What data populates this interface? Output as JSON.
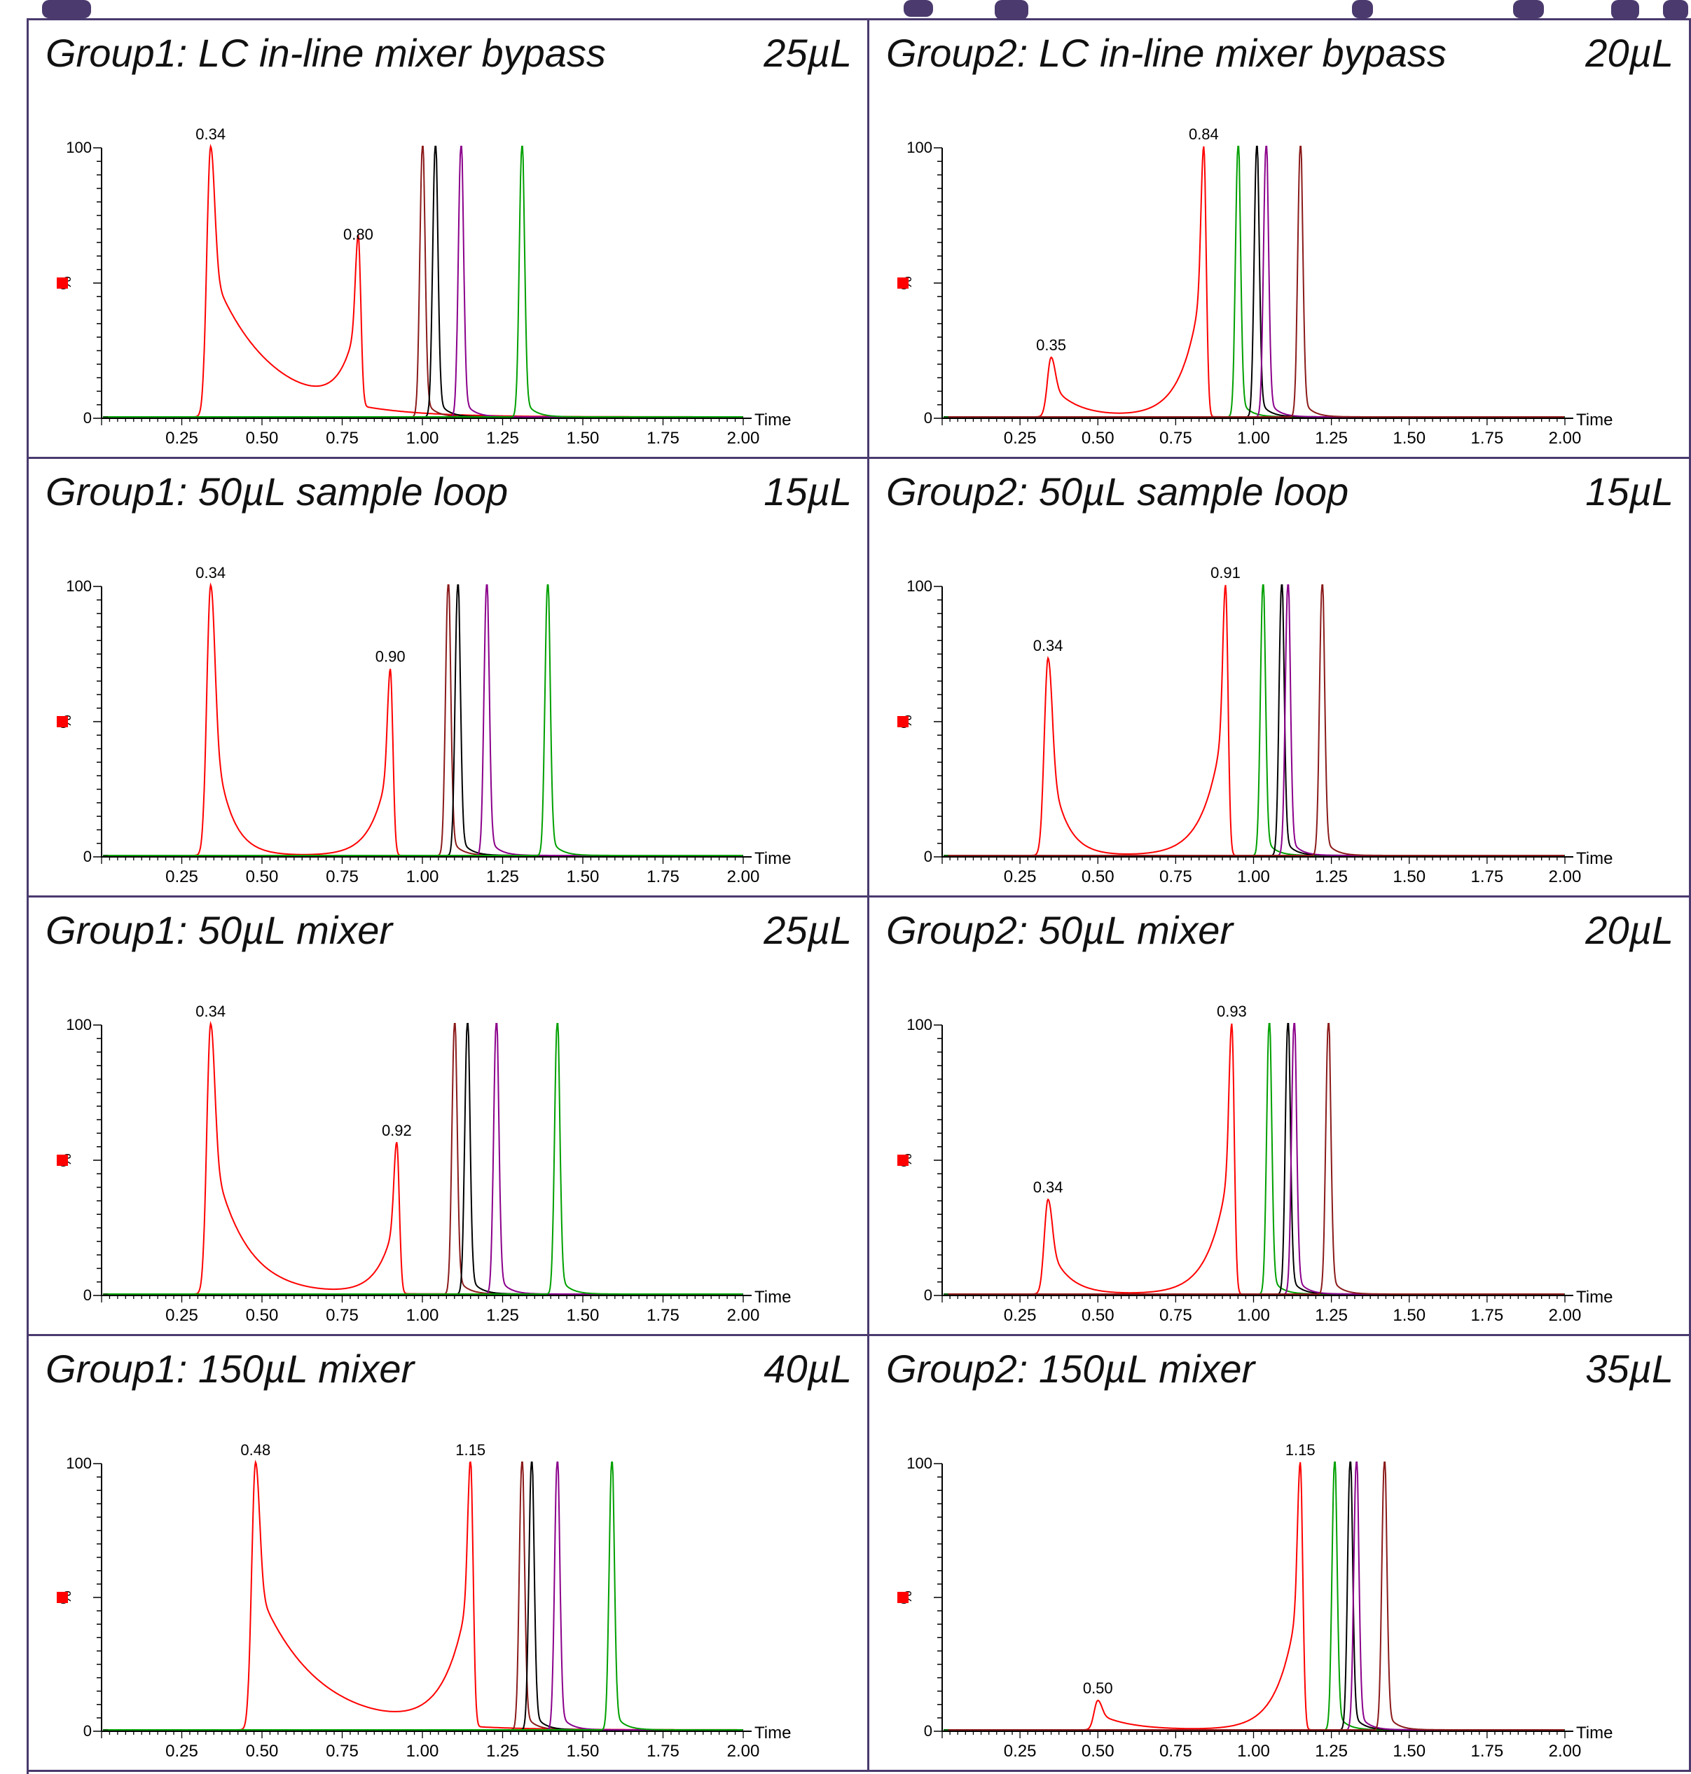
{
  "header_fragment": {
    "text_color": "#4a3a6e"
  },
  "colors": {
    "frame": "#4a3a6e",
    "axis": "#000000",
    "baseline": "#006400",
    "legend_marker": "#ff0000",
    "series": {
      "red": "#ff0000",
      "green": "#00a000",
      "black": "#000000",
      "purple": "#8b008b",
      "brown": "#8b1a1a"
    }
  },
  "panels": [
    {
      "title": "Group1: LC in-line mixer bypass",
      "volume": "25µL",
      "chart_data": {
        "type": "line",
        "xlabel": "Time",
        "ylabel": "%",
        "xlim": [
          0,
          2.0
        ],
        "ylim": [
          0,
          100
        ],
        "x_ticks": [
          "0.25",
          "0.50",
          "0.75",
          "1.00",
          "1.25",
          "1.50",
          "1.75",
          "2.00"
        ],
        "y_ticks": [
          "0",
          "100"
        ],
        "peak_labels": [
          "0.34",
          "0.80"
        ],
        "series": [
          {
            "color": "red",
            "peaks": [
              {
                "x": 0.34,
                "y": 100,
                "tail": 0.18,
                "label": "0.34"
              },
              {
                "x": 0.8,
                "y": 63,
                "front": 0.05,
                "label": "0.80"
              }
            ]
          },
          {
            "color": "brown",
            "peaks": [
              {
                "x": 1.0,
                "y": 100
              }
            ]
          },
          {
            "color": "black",
            "peaks": [
              {
                "x": 1.04,
                "y": 100
              }
            ]
          },
          {
            "color": "purple",
            "peaks": [
              {
                "x": 1.12,
                "y": 100
              }
            ]
          },
          {
            "color": "green",
            "peaks": [
              {
                "x": 1.31,
                "y": 100
              }
            ]
          }
        ]
      }
    },
    {
      "title": "Group2: LC in-line mixer bypass",
      "volume": "20µL",
      "chart_data": {
        "type": "line",
        "xlabel": "Time",
        "ylabel": "%",
        "xlim": [
          0,
          2.0
        ],
        "ylim": [
          0,
          100
        ],
        "x_ticks": [
          "0.25",
          "0.50",
          "0.75",
          "1.00",
          "1.25",
          "1.50",
          "1.75",
          "2.00"
        ],
        "y_ticks": [
          "0",
          "100"
        ],
        "peak_labels": [
          "0.84",
          "0.35"
        ],
        "series": [
          {
            "color": "red",
            "peaks": [
              {
                "x": 0.35,
                "y": 22,
                "tail": 0.08,
                "label": "0.35"
              },
              {
                "x": 0.84,
                "y": 100,
                "front": 0.06,
                "label": "0.84"
              }
            ]
          },
          {
            "color": "green",
            "peaks": [
              {
                "x": 0.95,
                "y": 100
              }
            ]
          },
          {
            "color": "black",
            "peaks": [
              {
                "x": 1.01,
                "y": 100
              }
            ]
          },
          {
            "color": "purple",
            "peaks": [
              {
                "x": 1.04,
                "y": 100
              }
            ]
          },
          {
            "color": "brown",
            "peaks": [
              {
                "x": 1.15,
                "y": 100
              }
            ]
          }
        ]
      }
    },
    {
      "title": "Group1: 50µL sample  loop",
      "volume": "15µL",
      "chart_data": {
        "type": "line",
        "xlabel": "Time",
        "ylabel": "%",
        "xlim": [
          0,
          2.0
        ],
        "ylim": [
          0,
          100
        ],
        "x_ticks": [
          "0.25",
          "0.50",
          "0.75",
          "1.00",
          "1.25",
          "1.50",
          "1.75",
          "2.00"
        ],
        "y_ticks": [
          "0",
          "100"
        ],
        "peak_labels": [
          "0.34",
          "0.90"
        ],
        "series": [
          {
            "color": "red",
            "peaks": [
              {
                "x": 0.34,
                "y": 100,
                "tail": 0.05,
                "label": "0.34"
              },
              {
                "x": 0.9,
                "y": 69,
                "front": 0.05,
                "label": "0.90"
              }
            ]
          },
          {
            "color": "brown",
            "peaks": [
              {
                "x": 1.08,
                "y": 100
              }
            ]
          },
          {
            "color": "black",
            "peaks": [
              {
                "x": 1.11,
                "y": 100
              }
            ]
          },
          {
            "color": "purple",
            "peaks": [
              {
                "x": 1.2,
                "y": 100
              }
            ]
          },
          {
            "color": "green",
            "peaks": [
              {
                "x": 1.39,
                "y": 100
              }
            ]
          }
        ]
      }
    },
    {
      "title": "Group2: 50µL sample  loop",
      "volume": "15µL",
      "chart_data": {
        "type": "line",
        "xlabel": "Time",
        "ylabel": "%",
        "xlim": [
          0,
          2.0
        ],
        "ylim": [
          0,
          100
        ],
        "x_ticks": [
          "0.25",
          "0.50",
          "0.75",
          "1.00",
          "1.25",
          "1.50",
          "1.75",
          "2.00"
        ],
        "y_ticks": [
          "0",
          "100"
        ],
        "peak_labels": [
          "0.91",
          "0.34"
        ],
        "series": [
          {
            "color": "red",
            "peaks": [
              {
                "x": 0.34,
                "y": 73,
                "tail": 0.05,
                "label": "0.34"
              },
              {
                "x": 0.91,
                "y": 100,
                "front": 0.06,
                "label": "0.91"
              }
            ]
          },
          {
            "color": "green",
            "peaks": [
              {
                "x": 1.03,
                "y": 100
              }
            ]
          },
          {
            "color": "black",
            "peaks": [
              {
                "x": 1.09,
                "y": 100
              }
            ]
          },
          {
            "color": "purple",
            "peaks": [
              {
                "x": 1.11,
                "y": 100
              }
            ]
          },
          {
            "color": "brown",
            "peaks": [
              {
                "x": 1.22,
                "y": 100
              }
            ]
          }
        ]
      }
    },
    {
      "title": "Group1: 50µL mixer",
      "volume": "25µL",
      "chart_data": {
        "type": "line",
        "xlabel": "Time",
        "ylabel": "%",
        "xlim": [
          0,
          2.0
        ],
        "ylim": [
          0,
          100
        ],
        "x_ticks": [
          "0.25",
          "0.50",
          "0.75",
          "1.00",
          "1.25",
          "1.50",
          "1.75",
          "2.00"
        ],
        "y_ticks": [
          "0",
          "100"
        ],
        "peak_labels": [
          "0.34",
          "0.92"
        ],
        "series": [
          {
            "color": "red",
            "peaks": [
              {
                "x": 0.34,
                "y": 100,
                "tail": 0.1,
                "label": "0.34"
              },
              {
                "x": 0.92,
                "y": 56,
                "front": 0.05,
                "label": "0.92"
              }
            ]
          },
          {
            "color": "brown",
            "peaks": [
              {
                "x": 1.1,
                "y": 100
              }
            ]
          },
          {
            "color": "black",
            "peaks": [
              {
                "x": 1.14,
                "y": 100
              }
            ]
          },
          {
            "color": "purple",
            "peaks": [
              {
                "x": 1.23,
                "y": 100
              }
            ]
          },
          {
            "color": "green",
            "peaks": [
              {
                "x": 1.42,
                "y": 100
              }
            ]
          }
        ]
      }
    },
    {
      "title": "Group2: 50µL mixer",
      "volume": "20µL",
      "chart_data": {
        "type": "line",
        "xlabel": "Time",
        "ylabel": "%",
        "xlim": [
          0,
          2.0
        ],
        "ylim": [
          0,
          100
        ],
        "x_ticks": [
          "0.25",
          "0.50",
          "0.75",
          "1.00",
          "1.25",
          "1.50",
          "1.75",
          "2.00"
        ],
        "y_ticks": [
          "0",
          "100"
        ],
        "peak_labels": [
          "0.93",
          "0.34"
        ],
        "series": [
          {
            "color": "red",
            "peaks": [
              {
                "x": 0.34,
                "y": 35,
                "tail": 0.06,
                "label": "0.34"
              },
              {
                "x": 0.93,
                "y": 100,
                "front": 0.06,
                "label": "0.93"
              }
            ]
          },
          {
            "color": "green",
            "peaks": [
              {
                "x": 1.05,
                "y": 100
              }
            ]
          },
          {
            "color": "black",
            "peaks": [
              {
                "x": 1.11,
                "y": 100
              }
            ]
          },
          {
            "color": "purple",
            "peaks": [
              {
                "x": 1.13,
                "y": 100
              }
            ]
          },
          {
            "color": "brown",
            "peaks": [
              {
                "x": 1.24,
                "y": 100
              }
            ]
          }
        ]
      }
    },
    {
      "title": "Group1: 150µL mixer",
      "volume": "40µL",
      "chart_data": {
        "type": "line",
        "xlabel": "Time",
        "ylabel": "%",
        "xlim": [
          0,
          2.0
        ],
        "ylim": [
          0,
          100
        ],
        "x_ticks": [
          "0.25",
          "0.50",
          "0.75",
          "1.00",
          "1.25",
          "1.50",
          "1.75",
          "2.00"
        ],
        "y_ticks": [
          "0",
          "100"
        ],
        "peak_labels": [
          "0.48",
          "1.15"
        ],
        "series": [
          {
            "color": "red",
            "peaks": [
              {
                "x": 0.48,
                "y": 100,
                "tail": 0.18,
                "label": "0.48"
              },
              {
                "x": 1.15,
                "y": 100,
                "front": 0.07,
                "label": "1.15"
              }
            ]
          },
          {
            "color": "brown",
            "peaks": [
              {
                "x": 1.31,
                "y": 100
              }
            ]
          },
          {
            "color": "black",
            "peaks": [
              {
                "x": 1.34,
                "y": 100
              }
            ]
          },
          {
            "color": "purple",
            "peaks": [
              {
                "x": 1.42,
                "y": 100
              }
            ]
          },
          {
            "color": "green",
            "peaks": [
              {
                "x": 1.59,
                "y": 100
              }
            ]
          }
        ]
      }
    },
    {
      "title": "Group2: 150µL mixer",
      "volume": "35µL",
      "chart_data": {
        "type": "line",
        "xlabel": "Time",
        "ylabel": "%",
        "xlim": [
          0,
          2.0
        ],
        "ylim": [
          0,
          100
        ],
        "x_ticks": [
          "0.25",
          "0.50",
          "0.75",
          "1.00",
          "1.25",
          "1.50",
          "1.75",
          "2.00"
        ],
        "y_ticks": [
          "0",
          "100"
        ],
        "peak_labels": [
          "1.15",
          "0.50"
        ],
        "series": [
          {
            "color": "red",
            "peaks": [
              {
                "x": 0.5,
                "y": 11,
                "tail": 0.1,
                "label": "0.50"
              },
              {
                "x": 1.15,
                "y": 100,
                "front": 0.06,
                "label": "1.15"
              }
            ]
          },
          {
            "color": "green",
            "peaks": [
              {
                "x": 1.26,
                "y": 100
              }
            ]
          },
          {
            "color": "black",
            "peaks": [
              {
                "x": 1.31,
                "y": 100
              }
            ]
          },
          {
            "color": "purple",
            "peaks": [
              {
                "x": 1.33,
                "y": 100
              }
            ]
          },
          {
            "color": "brown",
            "peaks": [
              {
                "x": 1.42,
                "y": 100
              }
            ]
          }
        ]
      }
    }
  ]
}
